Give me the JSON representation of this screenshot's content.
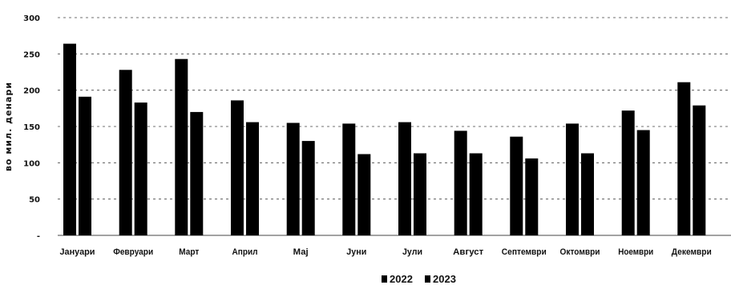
{
  "chart_data": {
    "type": "bar",
    "title": "",
    "xlabel": "",
    "ylabel": "во мил. денари",
    "ylim": [
      0,
      300
    ],
    "yticks": [
      {
        "value": 0,
        "label": "-"
      },
      {
        "value": 50,
        "label": "50"
      },
      {
        "value": 100,
        "label": "100"
      },
      {
        "value": 150,
        "label": "150"
      },
      {
        "value": 200,
        "label": "200"
      },
      {
        "value": 250,
        "label": "250"
      },
      {
        "value": 300,
        "label": "300"
      }
    ],
    "categories": [
      "Јануари",
      "Февруари",
      "Март",
      "Април",
      "Мај",
      "Јуни",
      "Јули",
      "Август",
      "Септември",
      "Октомври",
      "Ноември",
      "Декември"
    ],
    "series": [
      {
        "name": "2022",
        "color": "#000000",
        "values": [
          264,
          228,
          243,
          186,
          155,
          154,
          156,
          144,
          136,
          154,
          172,
          211
        ]
      },
      {
        "name": "2023",
        "color": "#000000",
        "values": [
          191,
          183,
          170,
          156,
          130,
          112,
          113,
          113,
          106,
          113,
          145,
          179
        ]
      }
    ],
    "grid": true,
    "gridlines": "horizontal dashed",
    "legend": "bottom-center"
  }
}
